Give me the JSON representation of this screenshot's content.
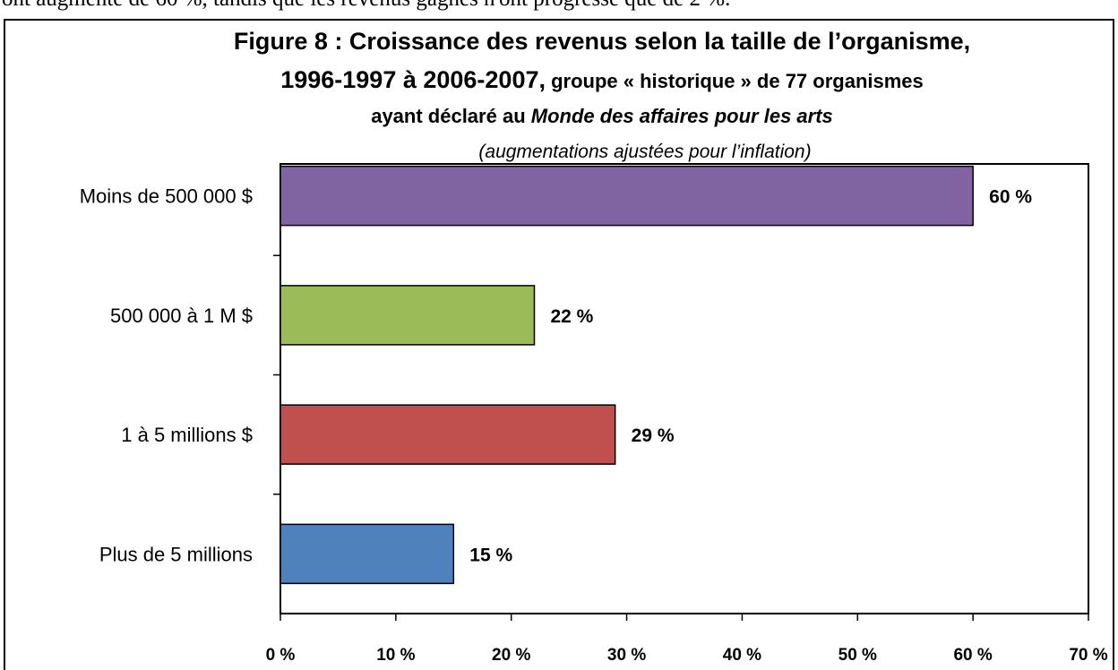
{
  "preceding_text": "ont augmenté de 60 %, tandis que les revenus gagnés n'ont progressé que de 2 %.",
  "chart_data": {
    "type": "bar",
    "orientation": "horizontal",
    "title": [
      [
        "Figure 8 : Croissance des revenus selon la taille de l’organisme,"
      ],
      [
        "1996-1997 à 2006-2007,",
        " groupe « historique » de 77 organismes"
      ],
      [
        "ayant déclaré au ",
        "Monde des affaires pour les arts"
      ]
    ],
    "subtitle": "(augmentations ajustées pour l’inflation)",
    "categories": [
      "Moins de 500 000 $",
      "500 000 à 1 M $",
      "1 à 5 millions $",
      "Plus de 5 millions"
    ],
    "values": [
      60,
      22,
      29,
      15
    ],
    "value_labels": [
      "60 %",
      "22 %",
      "29 %",
      "15 %"
    ],
    "colors": [
      "#8064a2",
      "#9bbb59",
      "#c0504d",
      "#4f81bd"
    ],
    "xlim": [
      0,
      70
    ],
    "xticks": [
      {
        "value": 0,
        "label": "0 %"
      },
      {
        "value": 10,
        "label": "10 %"
      },
      {
        "value": 20,
        "label": "20 %"
      },
      {
        "value": 30,
        "label": "30 %"
      },
      {
        "value": 40,
        "label": "40 %"
      },
      {
        "value": 50,
        "label": "50 %"
      },
      {
        "value": 60,
        "label": "60 %"
      },
      {
        "value": 70,
        "label": "70 %"
      }
    ]
  }
}
